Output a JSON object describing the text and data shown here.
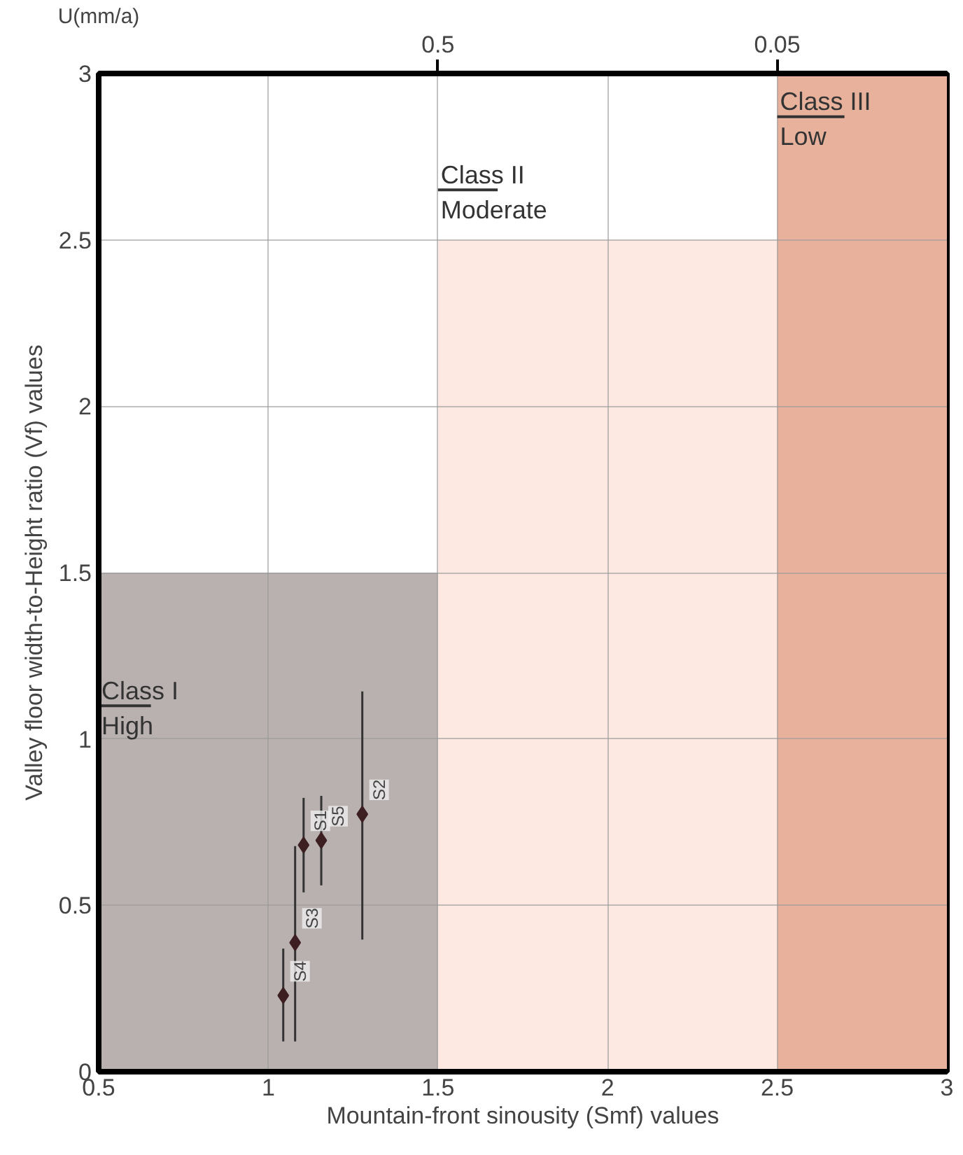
{
  "chart_data": {
    "type": "scatter",
    "xlabel": "Mountain-front sinousity (Smf) values",
    "ylabel": "Valley floor width-to-Height ratio (Vf) values",
    "x2label": "U(mm/a)",
    "x": [
      1.104,
      1.277,
      1.079,
      1.044,
      1.156
    ],
    "series": [
      {
        "type": "histogram",
        "bins": [
          0.5,
          1.5,
          2.5,
          3
        ],
        "values": [
          1.5,
          2.5,
          3
        ],
        "colors": [
          "#b9b1af",
          "#fde9e2",
          "#e8b19c"
        ]
      },
      {
        "color": "#3d1f22",
        "values": [
          0.681,
          0.774,
          0.388,
          0.229,
          0.695
        ],
        "errors": [
          [
            0.539,
            0.823
          ],
          [
            0.397,
            1.143
          ],
          [
            0.091,
            0.678
          ],
          [
            0.091,
            0.37
          ],
          [
            0.56,
            0.829
          ]
        ]
      }
    ],
    "annotations": [
      {
        "text": "S1",
        "x": 1.104,
        "y": 0.681
      },
      {
        "text": "S2",
        "x": 1.277,
        "y": 0.774
      },
      {
        "text": "S3",
        "x": 1.079,
        "y": 0.388
      },
      {
        "text": "S4",
        "x": 1.044,
        "y": 0.229
      },
      {
        "text": "S5",
        "x": 1.156,
        "y": 0.695
      },
      "Class I\nHigh",
      "Class II\nModerate",
      "Class III\nLow"
    ],
    "xlim": [
      0.5,
      3
    ],
    "ylim": [
      0,
      3
    ],
    "xticks": [
      0.5,
      1,
      1.5,
      2,
      2.5,
      3
    ],
    "yticks": [
      0,
      0.5,
      1,
      1.5,
      2,
      2.5,
      3
    ],
    "x2lim": [
      0.95,
      -0.175
    ],
    "x2ticks": [
      0.5,
      0.05
    ],
    "grid": true,
    "marker": "diamond"
  }
}
